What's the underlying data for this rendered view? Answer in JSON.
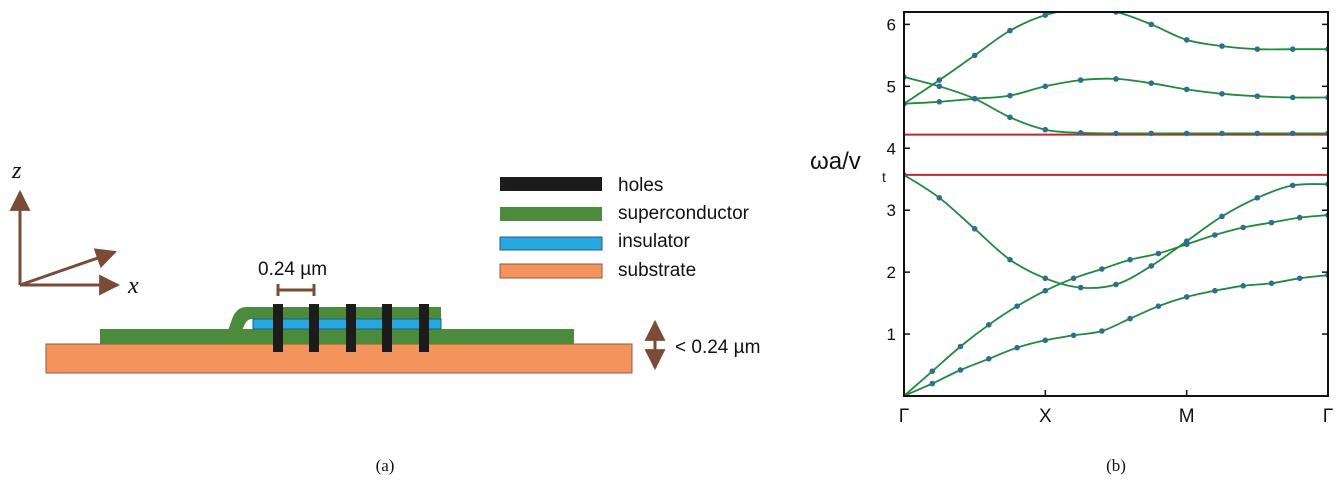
{
  "panel_a": {
    "axes": {
      "z_label": "z",
      "x_label": "x"
    },
    "legend": [
      {
        "label": "holes",
        "color": "#1c1c1c"
      },
      {
        "label": "superconductor",
        "color": "#4b8b3b"
      },
      {
        "label": "insulator",
        "color": "#29a7e1"
      },
      {
        "label": "substrate",
        "color": "#f3935e"
      }
    ],
    "spacing_label": "0.24 µm",
    "thickness_label": "< 0.24 µm",
    "arrow_color": "#7a4b35",
    "caption": "(a)"
  },
  "panel_b": {
    "caption": "(b)",
    "chart_data": {
      "type": "line",
      "ylabel_main": "ωa/v",
      "ylabel_sub": "t",
      "x_ticks": [
        "Γ",
        "X",
        "M",
        "Γ"
      ],
      "y_ticks": [
        "1",
        "2",
        "3",
        "4",
        "5",
        "6"
      ],
      "ylim": [
        0,
        6.2
      ],
      "band_gap_lines": [
        3.57,
        4.22
      ],
      "gap_color": "#c0272d",
      "curve_color": "#1e8a3c",
      "marker_color": "#2d6f8e",
      "bands": [
        {
          "x": [
            0,
            0.2,
            0.4,
            0.6,
            0.8,
            1.0,
            1.2,
            1.4,
            1.6,
            1.8,
            2.0,
            2.2,
            2.4,
            2.6,
            2.8,
            3.0
          ],
          "y": [
            0,
            0.2,
            0.42,
            0.6,
            0.78,
            0.9,
            0.98,
            1.05,
            1.25,
            1.45,
            1.6,
            1.7,
            1.78,
            1.82,
            1.9,
            1.95
          ]
        },
        {
          "x": [
            0,
            0.2,
            0.4,
            0.6,
            0.8,
            1.0,
            1.2,
            1.4,
            1.6,
            1.8,
            2.0,
            2.2,
            2.4,
            2.6,
            2.8,
            3.0
          ],
          "y": [
            0,
            0.4,
            0.8,
            1.15,
            1.45,
            1.7,
            1.9,
            2.05,
            2.2,
            2.3,
            2.45,
            2.6,
            2.72,
            2.8,
            2.88,
            2.92
          ]
        },
        {
          "x": [
            0,
            0.25,
            0.5,
            0.75,
            1.0,
            1.25,
            1.5,
            1.75,
            2.0,
            2.25,
            2.5,
            2.75,
            3.0
          ],
          "y": [
            3.57,
            3.2,
            2.7,
            2.2,
            1.9,
            1.75,
            1.8,
            2.1,
            2.5,
            2.9,
            3.2,
            3.4,
            3.42
          ]
        },
        {
          "x": [
            0,
            0.25,
            0.5,
            0.75,
            1.0,
            1.25,
            1.5,
            1.75,
            2.0,
            2.25,
            2.5,
            2.75,
            3.0
          ],
          "y": [
            4.72,
            4.75,
            4.8,
            4.85,
            5.0,
            5.1,
            5.12,
            5.05,
            4.95,
            4.88,
            4.84,
            4.82,
            4.82
          ]
        },
        {
          "x": [
            0,
            0.25,
            0.5,
            0.75,
            1.0,
            1.25,
            1.5,
            1.75,
            2.0,
            2.25,
            2.5,
            2.75,
            3.0
          ],
          "y": [
            5.15,
            5.0,
            4.8,
            4.5,
            4.3,
            4.25,
            4.24,
            4.24,
            4.24,
            4.24,
            4.24,
            4.24,
            4.24
          ]
        },
        {
          "x": [
            0,
            0.25,
            0.5,
            0.75,
            1.0,
            1.25,
            1.5,
            1.75,
            2.0,
            2.25,
            2.5,
            2.75,
            3.0
          ],
          "y": [
            4.72,
            5.1,
            5.5,
            5.9,
            6.15,
            6.25,
            6.2,
            6.0,
            5.75,
            5.65,
            5.6,
            5.6,
            5.6
          ]
        }
      ]
    }
  }
}
